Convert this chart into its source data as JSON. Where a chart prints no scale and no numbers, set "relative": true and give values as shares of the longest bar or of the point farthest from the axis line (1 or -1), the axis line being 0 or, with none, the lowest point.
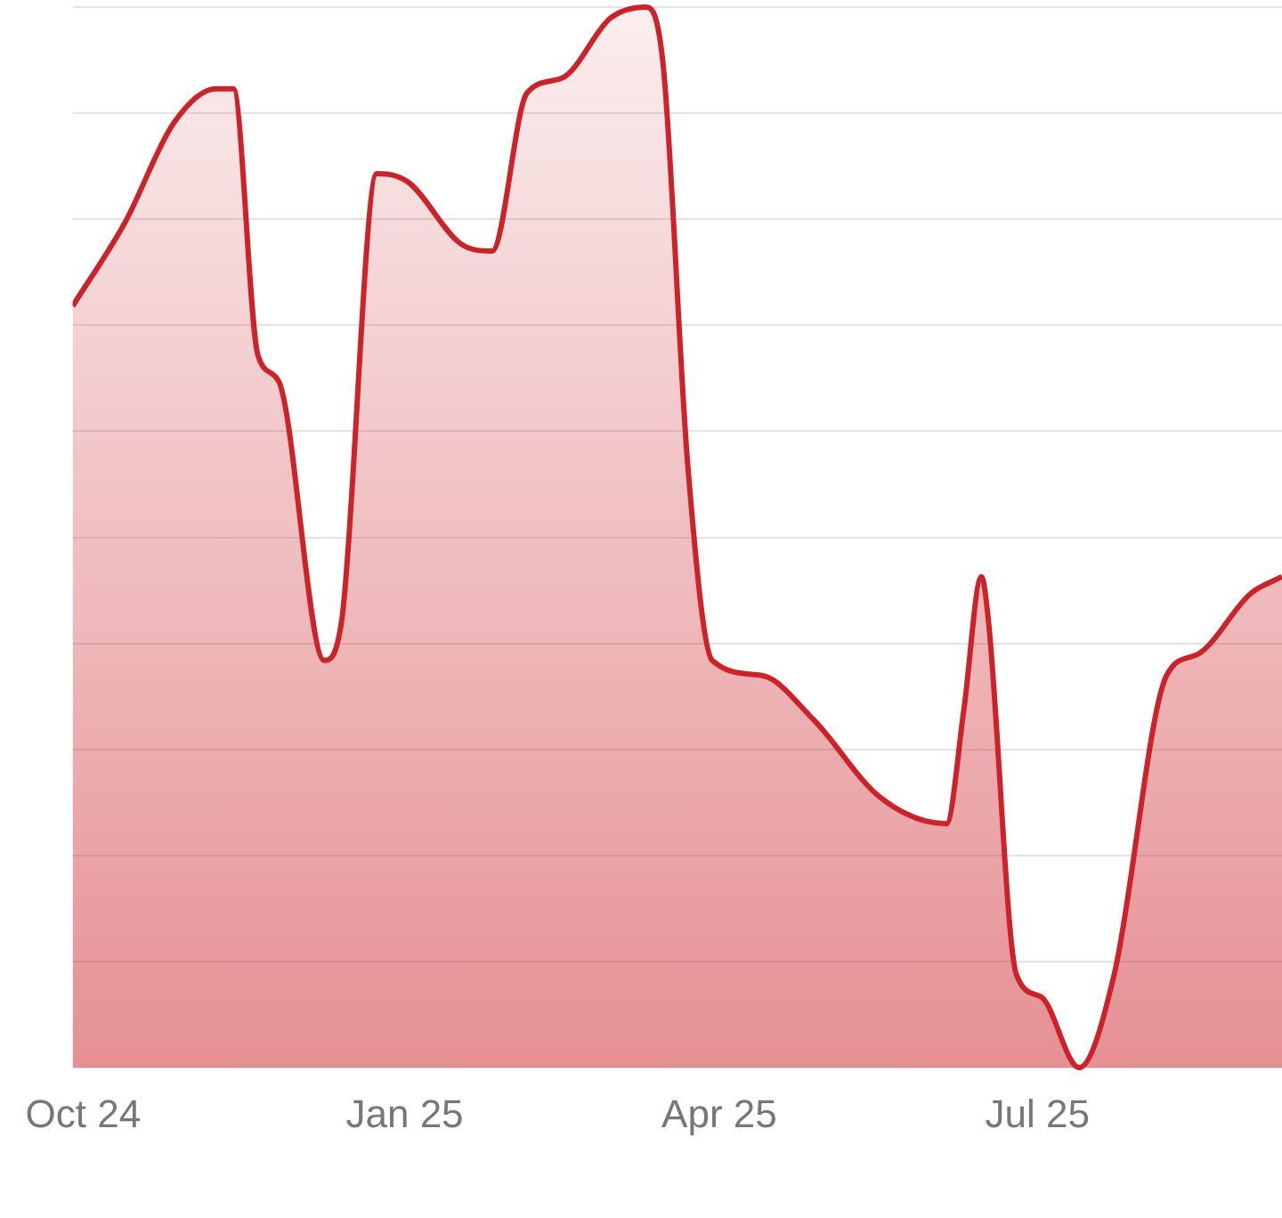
{
  "chart_data": {
    "type": "area",
    "relative": true,
    "grid": "y",
    "x": [
      "2024-09-28",
      "2024-10-13",
      "2024-10-27",
      "2024-11-08",
      "2024-11-13",
      "2024-11-20",
      "2024-11-26",
      "2024-12-09",
      "2024-12-14",
      "2024-12-24",
      "2025-01-02",
      "2025-01-17",
      "2025-01-26",
      "2025-02-05",
      "2025-02-15",
      "2025-03-01",
      "2025-03-11",
      "2025-03-16",
      "2025-03-23",
      "2025-03-30",
      "2025-04-13",
      "2025-04-28",
      "2025-05-17",
      "2025-06-05",
      "2025-06-10",
      "2025-06-15",
      "2025-06-17",
      "2025-06-25",
      "2025-07-02",
      "2025-07-13",
      "2025-07-23",
      "2025-08-07",
      "2025-08-16",
      "2025-08-31",
      "2025-09-09"
    ],
    "xlim": [
      "2024-09-28",
      "2025-09-09"
    ],
    "xticks": [
      {
        "value": "2024-10-01",
        "label": "Oct 24"
      },
      {
        "value": "2025-01-01",
        "label": "Jan 25"
      },
      {
        "value": "2025-04-01",
        "label": "Apr 25"
      },
      {
        "value": "2025-07-01",
        "label": "Jul 25"
      }
    ],
    "series": [
      {
        "color": "#cc2229",
        "values": [
          0.718,
          0.797,
          0.891,
          0.923,
          0.923,
          0.672,
          0.647,
          0.384,
          0.422,
          0.843,
          0.835,
          0.777,
          0.77,
          0.919,
          0.933,
          0.99,
          1,
          0.944,
          0.568,
          0.384,
          0.37,
          0.328,
          0.255,
          0.23,
          0.338,
          0.463,
          0.422,
          0.088,
          0.067,
          0,
          0.088,
          0.37,
          0.39,
          0.447,
          0.463
        ]
      }
    ]
  }
}
